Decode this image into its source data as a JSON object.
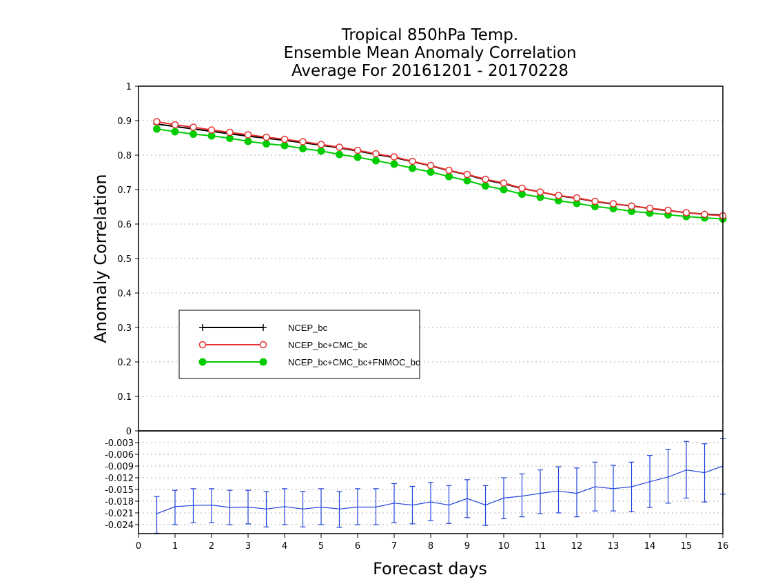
{
  "title_lines": [
    "Tropical 850hPa Temp.",
    "Ensemble Mean Anomaly Correlation",
    "Average For 20161201 - 20170228"
  ],
  "xlabel": "Forecast days",
  "ylabel": "Anomaly Correlation",
  "colors": {
    "ncep": "#000000",
    "cmc": "#e83030",
    "fnmoc": "#00cc00",
    "diff": "#2244dd",
    "grid": "#b0b0b0"
  },
  "chart_data": [
    {
      "type": "line",
      "panel": "top",
      "xlim": [
        0,
        16
      ],
      "ylim": [
        0,
        1
      ],
      "grid": true,
      "legend_position": "lower-left",
      "x": [
        0.5,
        1,
        1.5,
        2,
        2.5,
        3,
        3.5,
        4,
        4.5,
        5,
        5.5,
        6,
        6.5,
        7,
        7.5,
        8,
        8.5,
        9,
        9.5,
        10,
        10.5,
        11,
        11.5,
        12,
        12.5,
        13,
        13.5,
        14,
        14.5,
        15,
        15.5,
        16
      ],
      "yticks": [
        "0",
        "0.1",
        "0.2",
        "0.3",
        "0.4",
        "0.5",
        "0.6",
        "0.7",
        "0.8",
        "0.9",
        "1"
      ],
      "series": [
        {
          "name": "NCEP_bc",
          "marker": "plus",
          "values": [
            0.89,
            0.883,
            0.876,
            0.869,
            0.862,
            0.855,
            0.849,
            0.843,
            0.836,
            0.829,
            0.821,
            0.812,
            0.802,
            0.793,
            0.781,
            0.769,
            0.755,
            0.743,
            0.728,
            0.717,
            0.703,
            0.693,
            0.682,
            0.675,
            0.665,
            0.658,
            0.653,
            0.645,
            0.639,
            0.633,
            0.629,
            0.626
          ]
        },
        {
          "name": "NCEP_bc+CMC_bc",
          "marker": "open-circle",
          "values": [
            0.897,
            0.888,
            0.881,
            0.873,
            0.866,
            0.859,
            0.852,
            0.846,
            0.839,
            0.831,
            0.823,
            0.814,
            0.804,
            0.795,
            0.782,
            0.77,
            0.756,
            0.744,
            0.73,
            0.719,
            0.704,
            0.693,
            0.683,
            0.676,
            0.666,
            0.659,
            0.652,
            0.646,
            0.64,
            0.633,
            0.628,
            0.624
          ]
        },
        {
          "name": "NCEP_bc+CMC_bc+FNMOC_bc",
          "marker": "filled-circle",
          "values": [
            0.876,
            0.868,
            0.861,
            0.856,
            0.849,
            0.84,
            0.833,
            0.828,
            0.819,
            0.812,
            0.802,
            0.794,
            0.784,
            0.774,
            0.762,
            0.751,
            0.738,
            0.726,
            0.711,
            0.7,
            0.687,
            0.678,
            0.668,
            0.66,
            0.651,
            0.645,
            0.637,
            0.632,
            0.627,
            0.622,
            0.618,
            0.615
          ]
        }
      ]
    },
    {
      "type": "line",
      "panel": "bottom",
      "xlim": [
        0,
        16
      ],
      "ylim": [
        -0.0263,
        0
      ],
      "grid": true,
      "xticks": [
        "0",
        "1",
        "2",
        "3",
        "4",
        "5",
        "6",
        "7",
        "8",
        "9",
        "10",
        "11",
        "12",
        "13",
        "14",
        "15",
        "16"
      ],
      "yticks": [
        "-0.024",
        "-0.021",
        "-0.018",
        "-0.015",
        "-0.012",
        "-0.009",
        "-0.006",
        "-0.003",
        "0"
      ],
      "x": [
        0.5,
        1,
        1.5,
        2,
        2.5,
        3,
        3.5,
        4,
        4.5,
        5,
        5.5,
        6,
        6.5,
        7,
        7.5,
        8,
        8.5,
        9,
        9.5,
        10,
        10.5,
        11,
        11.5,
        12,
        12.5,
        13,
        13.5,
        14,
        14.5,
        15,
        15.5,
        16
      ],
      "series": [
        {
          "values": [
            -0.0212,
            -0.0194,
            -0.0191,
            -0.019,
            -0.0196,
            -0.0195,
            -0.02,
            -0.0194,
            -0.02,
            -0.0195,
            -0.02,
            -0.0195,
            -0.0195,
            -0.0185,
            -0.019,
            -0.0182,
            -0.019,
            -0.0173,
            -0.019,
            -0.0172,
            -0.0167,
            -0.016,
            -0.0154,
            -0.016,
            -0.0143,
            -0.0148,
            -0.0143,
            -0.013,
            -0.0118,
            -0.01,
            -0.0107,
            -0.009
          ],
          "error_low": [
            -0.0262,
            -0.024,
            -0.0235,
            -0.0235,
            -0.024,
            -0.0238,
            -0.0246,
            -0.024,
            -0.0246,
            -0.024,
            -0.0247,
            -0.024,
            -0.024,
            -0.0235,
            -0.0238,
            -0.023,
            -0.0237,
            -0.0222,
            -0.0242,
            -0.0225,
            -0.022,
            -0.0212,
            -0.021,
            -0.022,
            -0.0205,
            -0.0205,
            -0.0207,
            -0.0196,
            -0.0185,
            -0.0172,
            -0.0182,
            -0.0162
          ],
          "error_high": [
            -0.0168,
            -0.0152,
            -0.0148,
            -0.0148,
            -0.0152,
            -0.0152,
            -0.0155,
            -0.0148,
            -0.0155,
            -0.0148,
            -0.0155,
            -0.0148,
            -0.0148,
            -0.0135,
            -0.0142,
            -0.0132,
            -0.014,
            -0.0125,
            -0.014,
            -0.012,
            -0.011,
            -0.01,
            -0.0092,
            -0.0095,
            -0.008,
            -0.0088,
            -0.008,
            -0.0063,
            -0.0047,
            -0.0027,
            -0.0033,
            -0.002
          ]
        }
      ]
    }
  ]
}
